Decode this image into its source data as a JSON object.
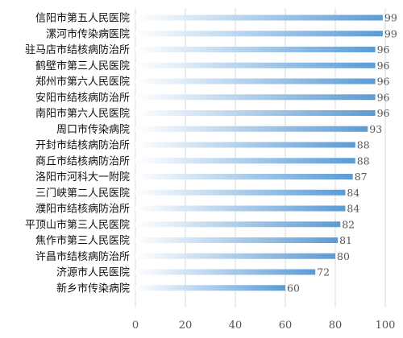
{
  "chart_data": {
    "type": "bar",
    "orientation": "horizontal",
    "categories": [
      "信阳市第五人民医院",
      "漯河市传染病医院",
      "驻马店市结核病防治所",
      "鹤壁市第三人民医院",
      "郑州市第六人民医院",
      "安阳市结核病防治所",
      "南阳市第六人民医院",
      "周口市传染病院",
      "开封市结核病防治所",
      "商丘市结核病防治所",
      "洛阳市河科大一附院",
      "三门峡第二人民医院",
      "濮阳市结核病防治所",
      "平顶山市第三人民医院",
      "焦作市第三人民医院",
      "许昌市结核病防治所",
      "济源市人民医院",
      "新乡市传染病院"
    ],
    "values": [
      99,
      99,
      96,
      96,
      96,
      96,
      96,
      93,
      88,
      88,
      87,
      84,
      84,
      82,
      81,
      80,
      72,
      60
    ],
    "xlim": [
      0,
      100
    ],
    "xticks": [
      0,
      20,
      40,
      60,
      80,
      100
    ],
    "grid": true,
    "data_labels": true,
    "bar_color": "#5b9bd5",
    "bar_fade_color": "#ffffff"
  }
}
